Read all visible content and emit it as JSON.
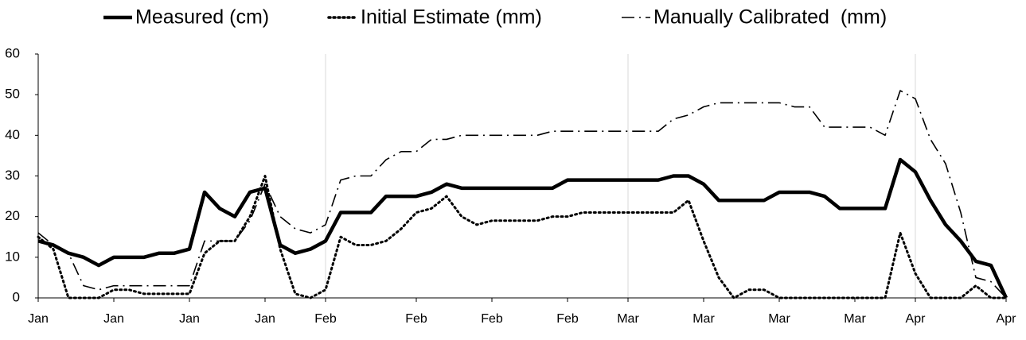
{
  "chart_data": {
    "type": "line",
    "grid": "x",
    "ylim": [
      0,
      60
    ],
    "yticks": [
      0,
      10,
      20,
      30,
      40,
      50,
      60
    ],
    "categories": [
      "Jan",
      null,
      null,
      null,
      null,
      "Jan",
      null,
      null,
      null,
      null,
      "Jan",
      null,
      null,
      null,
      null,
      "Jan",
      null,
      null,
      null,
      "Feb",
      null,
      null,
      null,
      null,
      null,
      "Feb",
      null,
      null,
      null,
      null,
      "Feb",
      null,
      null,
      null,
      null,
      "Feb",
      null,
      null,
      null,
      "Mar",
      null,
      null,
      null,
      null,
      "Mar",
      null,
      null,
      null,
      null,
      "Mar",
      null,
      null,
      null,
      null,
      "Mar",
      null,
      null,
      null,
      "Apr",
      null,
      null,
      null,
      null,
      null,
      "Apr"
    ],
    "series": [
      {
        "name": "Measured (cm)",
        "color": "#000000",
        "style": "solid",
        "values": [
          14,
          13,
          11,
          10,
          8,
          10,
          10,
          10,
          11,
          11,
          12,
          26,
          22,
          20,
          26,
          27,
          13,
          11,
          12,
          14,
          21,
          21,
          21,
          25,
          25,
          25,
          26,
          28,
          27,
          27,
          27,
          27,
          27,
          27,
          27,
          29,
          29,
          29,
          29,
          29,
          29,
          29,
          30,
          30,
          28,
          24,
          24,
          24,
          24,
          26,
          26,
          26,
          25,
          22,
          22,
          22,
          22,
          34,
          31,
          24,
          18,
          14,
          9,
          8,
          0
        ]
      },
      {
        "name": "Initial Estimate (mm)",
        "color": "#000000",
        "style": "dotted",
        "values": [
          15,
          12,
          0,
          0,
          0,
          2,
          2,
          1,
          1,
          1,
          1,
          11,
          14,
          14,
          20,
          30,
          12,
          1,
          0,
          2,
          15,
          13,
          13,
          14,
          17,
          21,
          22,
          25,
          20,
          18,
          19,
          19,
          19,
          19,
          20,
          20,
          21,
          21,
          21,
          21,
          21,
          21,
          21,
          24,
          14,
          5,
          0,
          2,
          2,
          0,
          0,
          0,
          0,
          0,
          0,
          0,
          0,
          16,
          6,
          0,
          0,
          0,
          3,
          0,
          0
        ]
      },
      {
        "name": "Manually Calibrated  (mm)",
        "color": "#000000",
        "style": "dashdot",
        "values": [
          16,
          13,
          11,
          3,
          2,
          3,
          3,
          3,
          3,
          3,
          3,
          14,
          14,
          14,
          19,
          28,
          20,
          17,
          16,
          18,
          29,
          30,
          30,
          34,
          36,
          36,
          39,
          39,
          40,
          40,
          40,
          40,
          40,
          40,
          41,
          41,
          41,
          41,
          41,
          41,
          41,
          41,
          44,
          45,
          47,
          48,
          48,
          48,
          48,
          48,
          47,
          47,
          42,
          42,
          42,
          42,
          40,
          51,
          49,
          39,
          33,
          21,
          5,
          4,
          0
        ]
      }
    ]
  }
}
